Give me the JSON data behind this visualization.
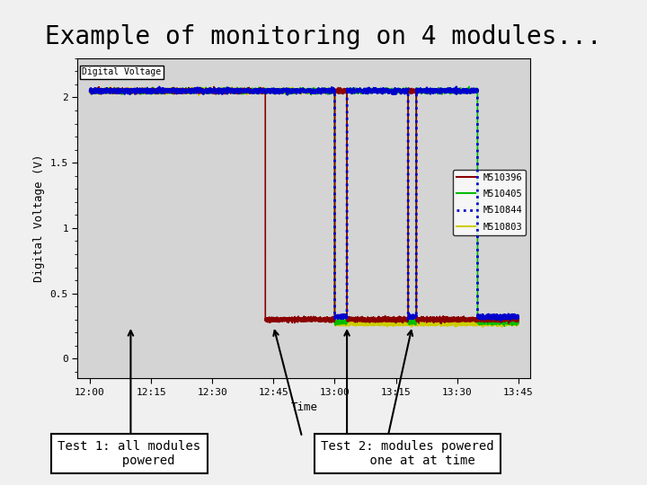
{
  "title": "Example of monitoring on 4 modules...",
  "title_fontsize": 20,
  "bg_color": "#f0f0f0",
  "chart_label": "Digital Voltage",
  "ylabel": "Digital Voltage (V)",
  "xlabel": "Time",
  "ylim": [
    -0.15,
    2.3
  ],
  "yticks": [
    0,
    0.5,
    1,
    1.5,
    2
  ],
  "time_labels": [
    "12:00",
    "12:15",
    "12:30",
    "12:45",
    "13:00",
    "13:15",
    "13:30",
    "13:45"
  ],
  "x_ticks": [
    0,
    15,
    30,
    45,
    60,
    75,
    90,
    105
  ],
  "legend_labels": [
    "M510396",
    "M510405",
    "M510844",
    "M510803"
  ],
  "legend_colors": [
    "#8B0000",
    "#00BB00",
    "#0000CC",
    "#CCCC00"
  ],
  "legend_styles": [
    "-",
    "-",
    ":",
    "-"
  ],
  "high_val": 2.05,
  "low_vals": [
    0.3,
    0.28,
    0.32,
    0.27
  ],
  "noise_std": 0.008
}
